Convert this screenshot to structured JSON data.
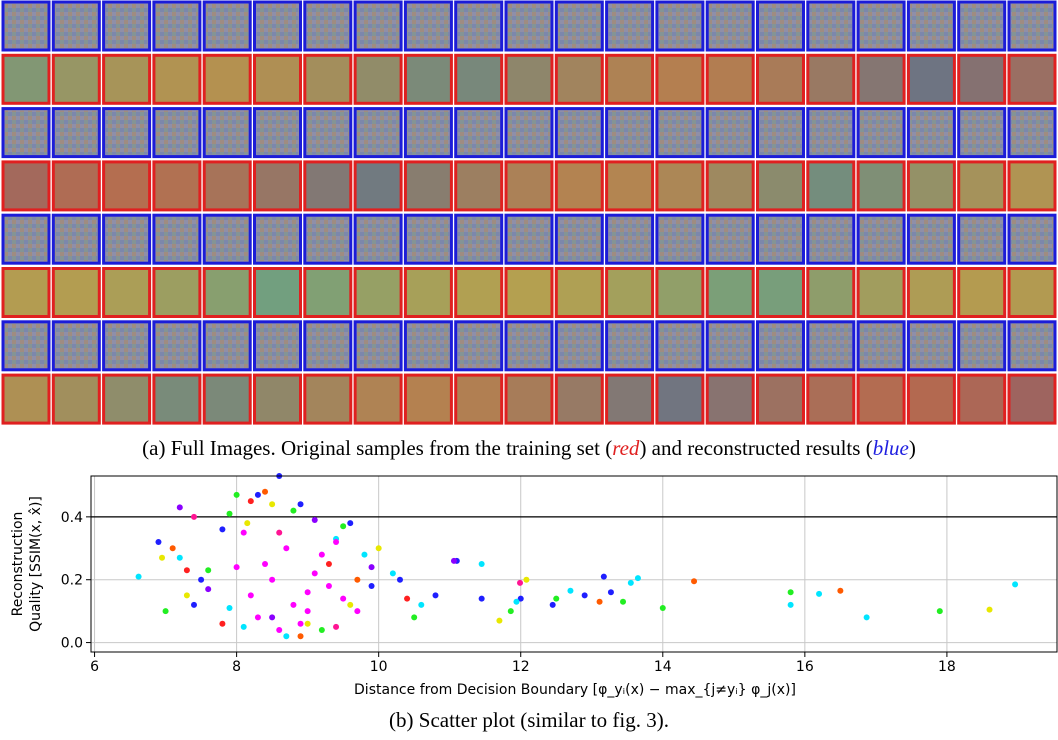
{
  "caption_a": {
    "before": "(a) Full Images. Original samples from the training set (",
    "red": "red",
    "middle": ") and reconstructed results (",
    "blue": "blue",
    "after": ")"
  },
  "chart_data": {
    "type": "scatter",
    "ylabel": [
      "Reconstruction",
      "Quality [SSIM(x, x̂)]"
    ],
    "xlabel": "Distance from Decision Boundary [φ_yᵢ(x) − max_{j≠yᵢ} φ_j(x)]",
    "xlim": [
      5.95,
      19.55
    ],
    "ylim": [
      -0.03,
      0.53
    ],
    "xticks": [
      6,
      8,
      10,
      12,
      14,
      16,
      18
    ],
    "yticks": [
      {
        "value": 0,
        "label": "0.0"
      },
      0.2,
      0.4
    ],
    "grid": true,
    "reference_line": 0.4,
    "series": [
      {
        "color": "#1f1fff",
        "x": [
          6.9,
          7.5,
          7.8,
          8.3,
          8.9,
          9.6,
          10.3,
          10.8,
          11.1,
          11.45,
          12.0,
          12.45,
          12.9,
          13.17,
          13.27,
          8.6,
          9.9,
          7.4
        ],
        "y": [
          0.32,
          0.2,
          0.36,
          0.47,
          0.44,
          0.38,
          0.2,
          0.15,
          0.26,
          0.14,
          0.14,
          0.12,
          0.15,
          0.21,
          0.16,
          0.53,
          0.18,
          0.12
        ]
      },
      {
        "color": "#00e5ff",
        "x": [
          6.62,
          7.2,
          7.9,
          8.7,
          9.4,
          10.2,
          10.6,
          11.45,
          11.94,
          12.7,
          13.55,
          13.65,
          15.8,
          16.2,
          16.87,
          18.96,
          8.1,
          9.8
        ],
        "y": [
          0.21,
          0.27,
          0.11,
          0.02,
          0.33,
          0.22,
          0.12,
          0.25,
          0.13,
          0.165,
          0.19,
          0.205,
          0.12,
          0.155,
          0.08,
          0.185,
          0.05,
          0.28
        ]
      },
      {
        "color": "#22ee22",
        "x": [
          7.0,
          7.6,
          8.0,
          8.8,
          9.5,
          10.5,
          11.86,
          12.5,
          13.44,
          14.0,
          15.8,
          17.9,
          7.9,
          9.2
        ],
        "y": [
          0.1,
          0.23,
          0.47,
          0.42,
          0.37,
          0.08,
          0.1,
          0.14,
          0.13,
          0.11,
          0.16,
          0.1,
          0.41,
          0.04
        ]
      },
      {
        "color": "#e8e800",
        "x": [
          6.95,
          7.3,
          8.15,
          9.0,
          10.0,
          11.7,
          12.08,
          18.6,
          8.5,
          9.6
        ],
        "y": [
          0.27,
          0.15,
          0.38,
          0.06,
          0.3,
          0.07,
          0.2,
          0.105,
          0.44,
          0.12
        ]
      },
      {
        "color": "#ff5a00",
        "x": [
          7.1,
          8.4,
          9.7,
          13.11,
          14.44,
          16.5,
          8.9
        ],
        "y": [
          0.3,
          0.48,
          0.2,
          0.13,
          0.195,
          0.165,
          0.02
        ]
      },
      {
        "color": "#ff2020",
        "x": [
          7.3,
          8.2,
          9.3,
          7.8,
          10.4
        ],
        "y": [
          0.23,
          0.45,
          0.25,
          0.06,
          0.14
        ]
      },
      {
        "color": "#8a00ff",
        "x": [
          7.6,
          8.5,
          9.1,
          9.9,
          7.2,
          11.06
        ],
        "y": [
          0.17,
          0.08,
          0.39,
          0.24,
          0.43,
          0.26
        ]
      },
      {
        "color": "#ff1493",
        "x": [
          7.4,
          8.6,
          9.4,
          11.99
        ],
        "y": [
          0.4,
          0.35,
          0.05,
          0.19
        ]
      },
      {
        "color": "#ff00ff",
        "x": [
          8.2,
          8.5,
          8.8,
          9.0,
          9.3,
          8.4,
          8.7,
          9.1,
          9.5,
          8.1,
          8.9,
          9.2,
          8.6,
          9.7,
          8.3,
          9.0,
          8.0,
          9.4
        ],
        "y": [
          0.15,
          0.2,
          0.12,
          0.1,
          0.18,
          0.25,
          0.3,
          0.22,
          0.14,
          0.35,
          0.06,
          0.28,
          0.04,
          0.1,
          0.08,
          0.16,
          0.24,
          0.32
        ]
      }
    ]
  },
  "caption_b": "(b) Scatter plot (similar to fig. 3)."
}
